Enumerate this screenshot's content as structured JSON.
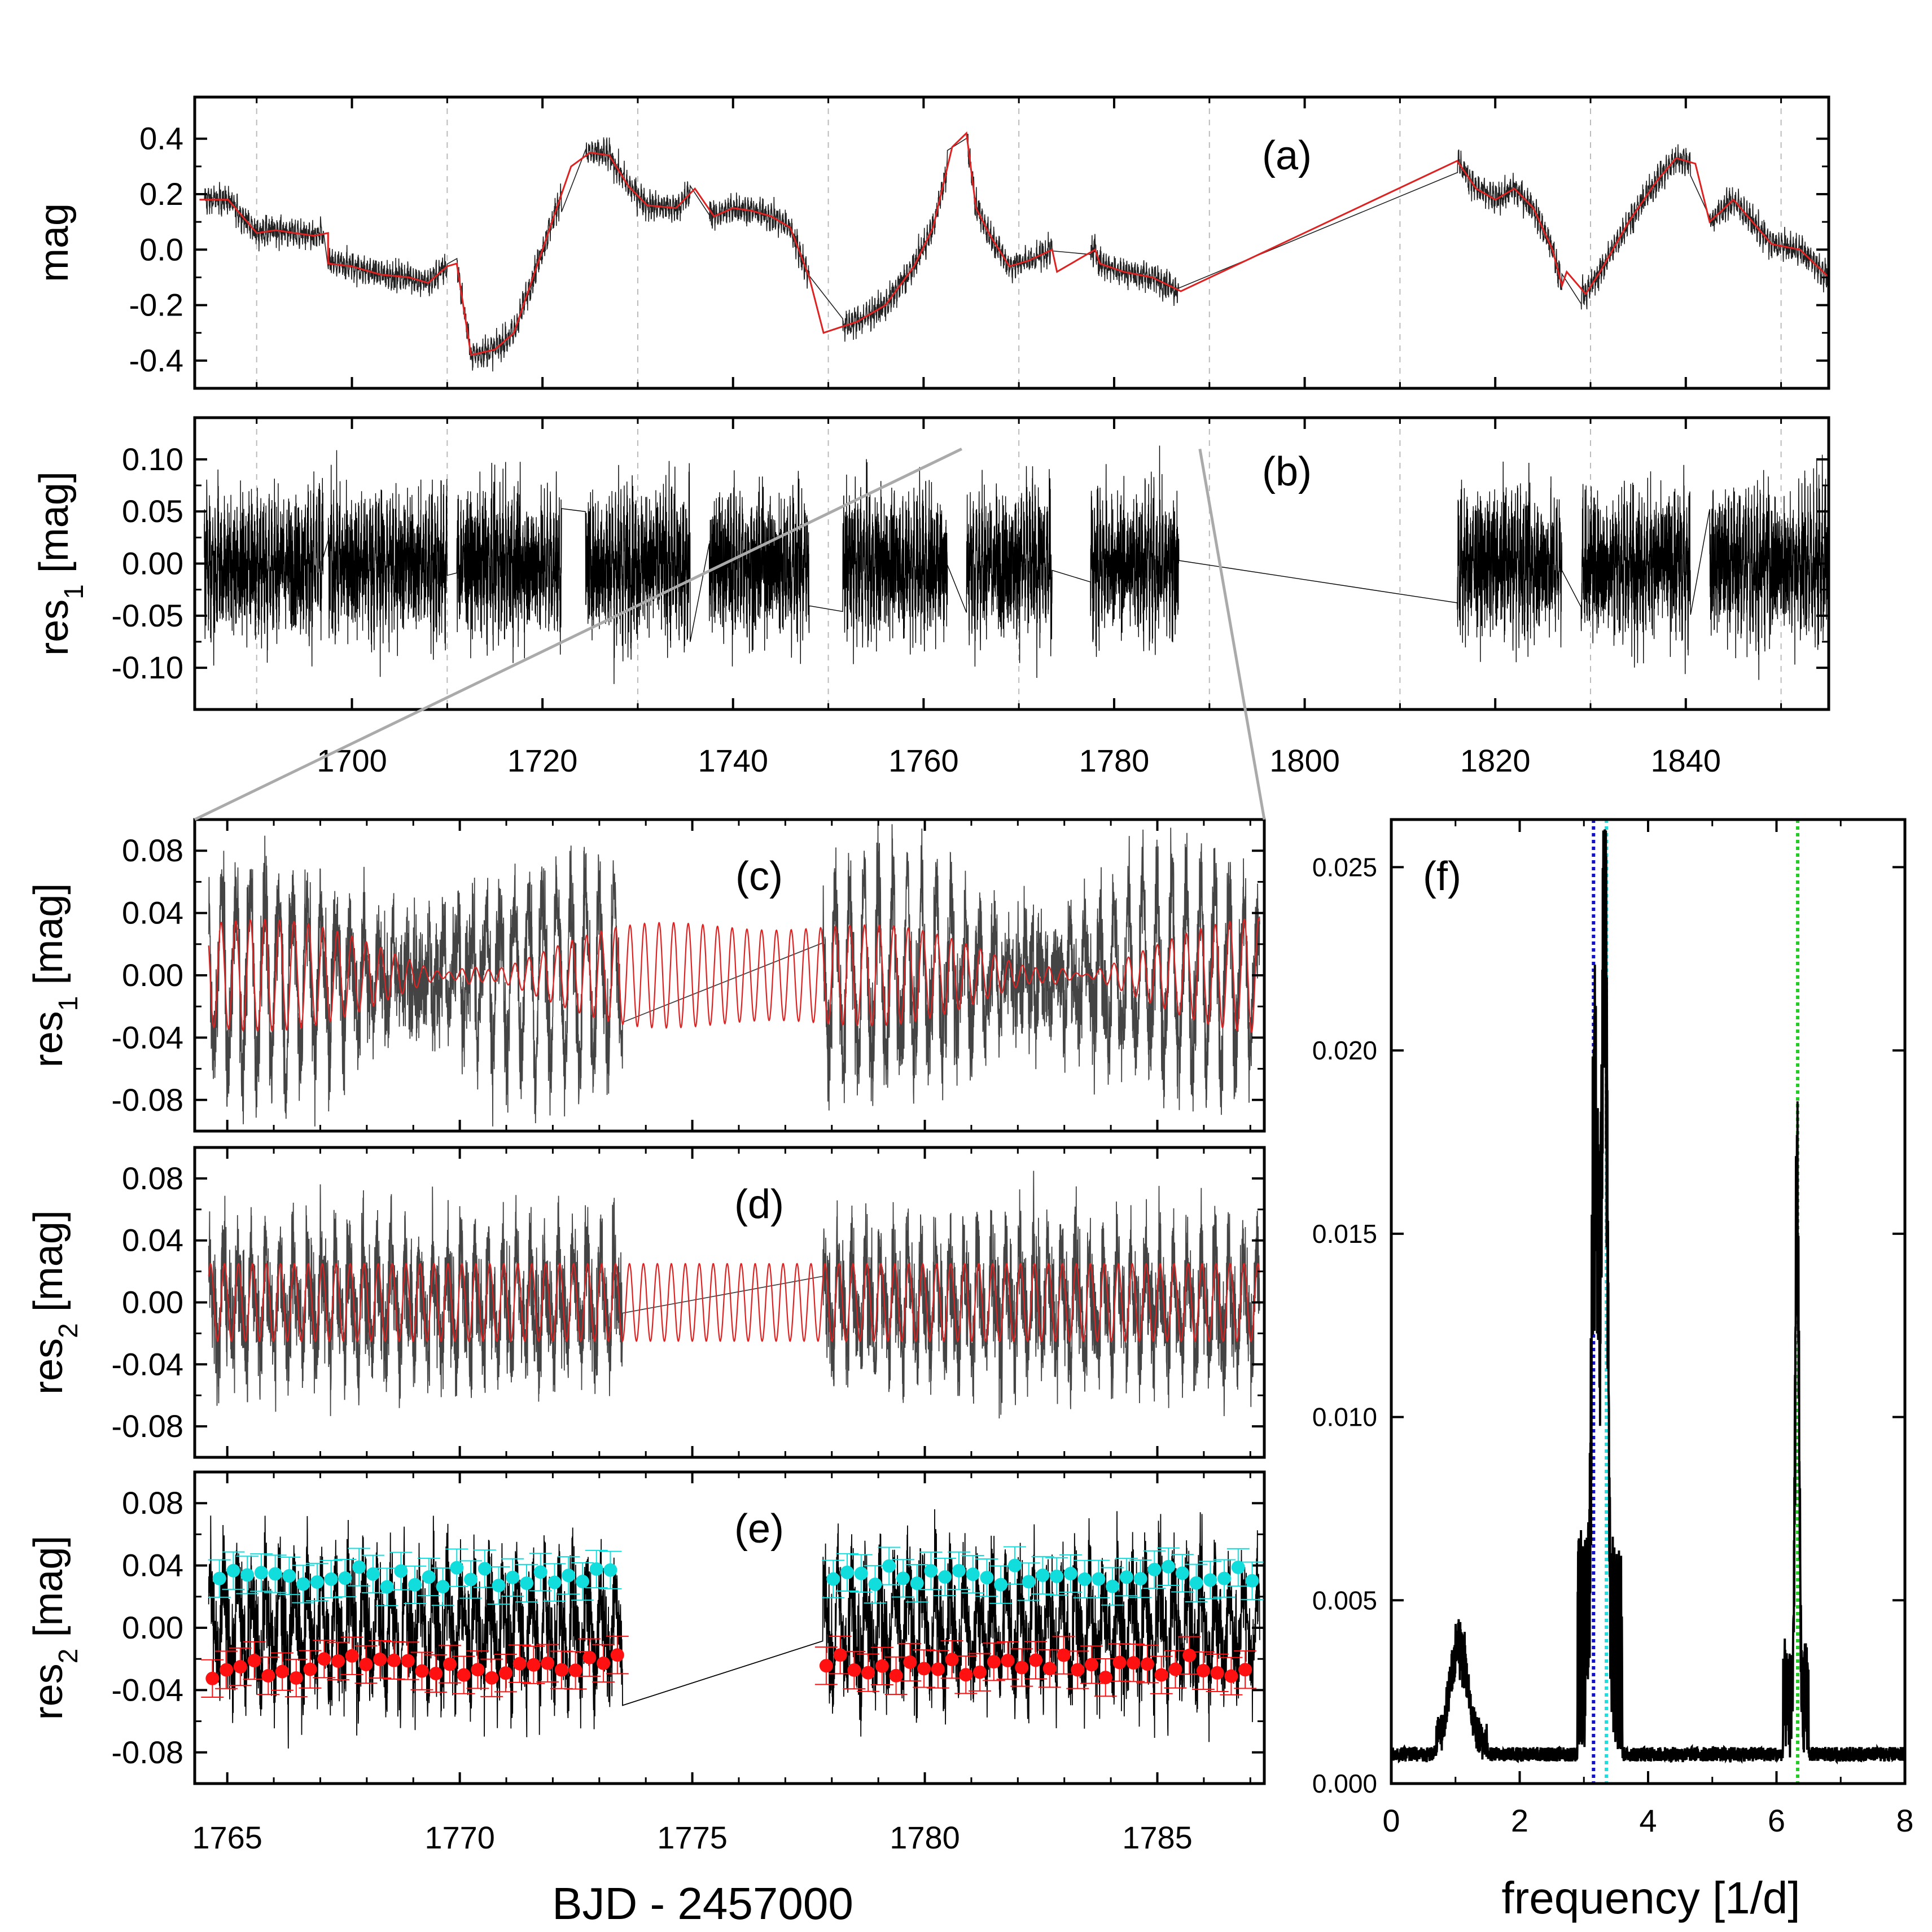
{
  "figure": {
    "xlabel_bottom": "BJD - 2457000",
    "xlabel_freq": "frequency [1/d]"
  },
  "colors": {
    "data": "#222222",
    "model": "#dd2222",
    "zoom_box": "#ff33ff",
    "connector": "#aaaaaa",
    "grid": "#bbbbbb",
    "red_points": "#ff1111",
    "cyan_points": "#11dddd",
    "blue_line": "#1111cc",
    "cyan_line": "#22dddd",
    "green_line": "#22cc22"
  },
  "chart_data": [
    {
      "id": "a",
      "type": "line",
      "label": "(a)",
      "ylabel": "mag",
      "yticks": [
        "-0.4",
        "-0.2",
        "0.0",
        "0.2",
        "0.4"
      ],
      "ytick_values": [
        -0.4,
        -0.2,
        0.0,
        0.2,
        0.4
      ],
      "ylim": [
        0.55,
        -0.5
      ],
      "xlim": [
        1683.5,
        1855
      ],
      "x_grid": [
        1690,
        1710,
        1730,
        1750,
        1770,
        1790,
        1810,
        1830,
        1850
      ],
      "trend": [
        [
          1684,
          0.18
        ],
        [
          1687,
          0.18
        ],
        [
          1690,
          0.06
        ],
        [
          1692,
          0.07
        ],
        [
          1696,
          0.05
        ],
        [
          1697.5,
          0.06
        ],
        [
          1697.5,
          -0.05
        ],
        [
          1700,
          -0.06
        ],
        [
          1703,
          -0.09
        ],
        [
          1706,
          -0.1
        ],
        [
          1708,
          -0.12
        ],
        [
          1710,
          -0.06
        ],
        [
          1711,
          -0.05
        ],
        [
          1712.5,
          -0.38
        ],
        [
          1715,
          -0.36
        ],
        [
          1717,
          -0.3
        ],
        [
          1719,
          -0.1
        ],
        [
          1721,
          0.1
        ],
        [
          1723,
          0.3
        ],
        [
          1725,
          0.35
        ],
        [
          1727,
          0.34
        ],
        [
          1729,
          0.23
        ],
        [
          1731,
          0.16
        ],
        [
          1734,
          0.15
        ],
        [
          1736,
          0.22
        ],
        [
          1738,
          0.12
        ],
        [
          1740,
          0.15
        ],
        [
          1742,
          0.14
        ],
        [
          1744,
          0.12
        ],
        [
          1746,
          0.08
        ],
        [
          1748,
          -0.1
        ],
        [
          1749.5,
          -0.3
        ],
        [
          1753,
          -0.26
        ],
        [
          1756,
          -0.2
        ],
        [
          1759,
          -0.06
        ],
        [
          1761,
          0.08
        ],
        [
          1763,
          0.37
        ],
        [
          1764.5,
          0.42
        ],
        [
          1765.5,
          0.15
        ],
        [
          1767,
          0.05
        ],
        [
          1769,
          -0.06
        ],
        [
          1771,
          -0.04
        ],
        [
          1773.5,
          0.0
        ],
        [
          1774,
          -0.08
        ],
        [
          1778,
          0.0
        ],
        [
          1778.5,
          -0.05
        ],
        [
          1781,
          -0.08
        ],
        [
          1784,
          -0.1
        ],
        [
          1787,
          -0.15
        ],
        [
          1816,
          0.32
        ],
        [
          1818,
          0.22
        ],
        [
          1820,
          0.18
        ],
        [
          1822,
          0.22
        ],
        [
          1824,
          0.15
        ],
        [
          1826,
          0.0
        ],
        [
          1827,
          -0.13
        ],
        [
          1827.5,
          -0.08
        ],
        [
          1829.5,
          -0.16
        ],
        [
          1831,
          -0.08
        ],
        [
          1834,
          0.1
        ],
        [
          1837,
          0.25
        ],
        [
          1839,
          0.33
        ],
        [
          1841,
          0.31
        ],
        [
          1842.5,
          0.1
        ],
        [
          1845,
          0.18
        ],
        [
          1847,
          0.1
        ],
        [
          1849,
          0.02
        ],
        [
          1852,
          0.0
        ],
        [
          1855,
          -0.1
        ]
      ],
      "gaps": [
        [
          1697,
          1697.5
        ],
        [
          1773.5,
          1778
        ],
        [
          1787,
          1816
        ]
      ]
    },
    {
      "id": "b",
      "type": "line",
      "label": "(b)",
      "ylabel": "res",
      "ylabel_sub": "1",
      "ylabel_suffix": " [mag]",
      "yticks": [
        "-0.10",
        "-0.05",
        "0.00",
        "0.05",
        "0.10"
      ],
      "ytick_values": [
        -0.1,
        -0.05,
        0.0,
        0.05,
        0.1
      ],
      "ylim": [
        0.14,
        -0.14
      ],
      "xlim": [
        1683.5,
        1855
      ],
      "xticks": [
        "1700",
        "1720",
        "1740",
        "1760",
        "1780",
        "1800",
        "1820",
        "1840"
      ],
      "xtick_values": [
        1700,
        1720,
        1740,
        1760,
        1780,
        1800,
        1820,
        1840
      ],
      "x_grid": [
        1690,
        1710,
        1730,
        1750,
        1770,
        1790,
        1810,
        1830,
        1850
      ],
      "segments": [
        [
          1684.5,
          1697
        ],
        [
          1697.5,
          1710
        ],
        [
          1711,
          1722
        ],
        [
          1724.5,
          1735.5
        ],
        [
          1737.5,
          1748
        ],
        [
          1751.5,
          1762.5
        ],
        [
          1764.5,
          1773.5
        ],
        [
          1777.5,
          1786.8
        ],
        [
          1816,
          1827
        ],
        [
          1829,
          1840.5
        ],
        [
          1842.5,
          1855
        ]
      ],
      "zoom_box": {
        "x0": 1764,
        "x1": 1789,
        "y0": -0.13,
        "y1": 0.11
      }
    },
    {
      "id": "c",
      "type": "line",
      "label": "(c)",
      "ylabel": "res",
      "ylabel_sub": "1",
      "ylabel_suffix": " [mag]",
      "yticks": [
        "-0.08",
        "-0.04",
        "0.00",
        "0.04",
        "0.08"
      ],
      "ytick_values": [
        -0.08,
        -0.04,
        0.0,
        0.04,
        0.08
      ],
      "ylim": [
        0.1,
        -0.1
      ],
      "xlim": [
        1764.3,
        1787.3
      ],
      "segments": [
        [
          1764.6,
          1773.5
        ],
        [
          1777.8,
          1787.2
        ]
      ],
      "model_freq": 3.18,
      "model_beat_freq": 0.18
    },
    {
      "id": "d",
      "type": "line",
      "label": "(d)",
      "ylabel": "res",
      "ylabel_sub": "2",
      "ylabel_suffix": " [mag]",
      "yticks": [
        "-0.08",
        "-0.04",
        "0.00",
        "0.04",
        "0.08"
      ],
      "ytick_values": [
        -0.08,
        -0.04,
        0.0,
        0.04,
        0.08
      ],
      "ylim": [
        0.1,
        -0.1
      ],
      "xlim": [
        1764.3,
        1787.3
      ],
      "segments": [
        [
          1764.6,
          1773.5
        ],
        [
          1777.8,
          1787.2
        ]
      ],
      "model_freq": 3.33
    },
    {
      "id": "e",
      "type": "scatter",
      "label": "(e)",
      "ylabel": "res",
      "ylabel_sub": "2",
      "ylabel_suffix": " [mag]",
      "yticks": [
        "-0.08",
        "-0.04",
        "0.00",
        "0.04",
        "0.08"
      ],
      "ytick_values": [
        -0.08,
        -0.04,
        0.0,
        0.04,
        0.08
      ],
      "ylim": [
        0.1,
        -0.1
      ],
      "xlim": [
        1764.3,
        1787.3
      ],
      "xticks": [
        "1765",
        "1770",
        "1775",
        "1780",
        "1785"
      ],
      "xtick_values": [
        1765,
        1770,
        1775,
        1780,
        1785
      ],
      "segments": [
        [
          1764.6,
          1773.5
        ],
        [
          1777.8,
          1787.2
        ]
      ],
      "maxima_mean": -0.025,
      "minima_mean": 0.033
    },
    {
      "id": "f",
      "type": "line",
      "label": "(f)",
      "xlabel": "frequency [1/d]",
      "xticks": [
        "0",
        "2",
        "4",
        "6",
        "8"
      ],
      "xtick_values": [
        0,
        2,
        4,
        6,
        8
      ],
      "xlim": [
        0,
        8
      ],
      "yticks": [
        "0.000",
        "0.005",
        "0.010",
        "0.015",
        "0.020",
        "0.025"
      ],
      "ytick_values": [
        0.0,
        0.005,
        0.01,
        0.015,
        0.02,
        0.025
      ],
      "ylim": [
        0,
        0.0263
      ],
      "peaks": [
        {
          "f": 3.16,
          "amp": 0.018,
          "width": 0.05
        },
        {
          "f": 3.33,
          "amp": 0.0238,
          "width": 0.05
        },
        {
          "f": 3.25,
          "amp": 0.01,
          "width": 0.05
        },
        {
          "f": 6.32,
          "amp": 0.016,
          "width": 0.04
        },
        {
          "f": 1.05,
          "amp": 0.0031,
          "width": 0.18
        }
      ],
      "vlines": [
        {
          "f": 3.15,
          "color": "#1111cc"
        },
        {
          "f": 3.35,
          "color": "#22dddd"
        },
        {
          "f": 6.33,
          "color": "#22cc22"
        }
      ]
    }
  ]
}
